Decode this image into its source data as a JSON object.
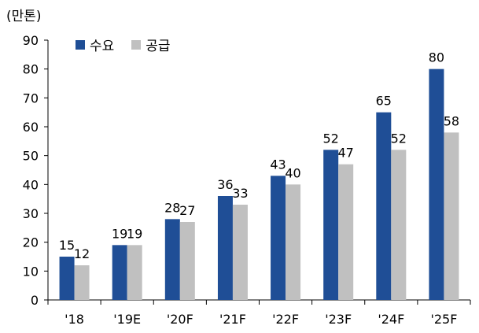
{
  "chart_data": {
    "type": "bar",
    "unit_label": "(만톤)",
    "categories": [
      "'18",
      "'19E",
      "'20F",
      "'21F",
      "'22F",
      "'23F",
      "'24F",
      "'25F"
    ],
    "series": [
      {
        "name": "수요",
        "color": "#1F4E96",
        "values": [
          15,
          19,
          28,
          36,
          43,
          52,
          65,
          80
        ]
      },
      {
        "name": "공급",
        "color": "#C0C0C0",
        "values": [
          12,
          19,
          27,
          33,
          40,
          47,
          52,
          58
        ]
      }
    ],
    "ylim": [
      0,
      90
    ],
    "yticks": [
      0,
      10,
      20,
      30,
      40,
      50,
      60,
      70,
      80,
      90
    ],
    "legend_position": "top-left",
    "grid": false
  }
}
